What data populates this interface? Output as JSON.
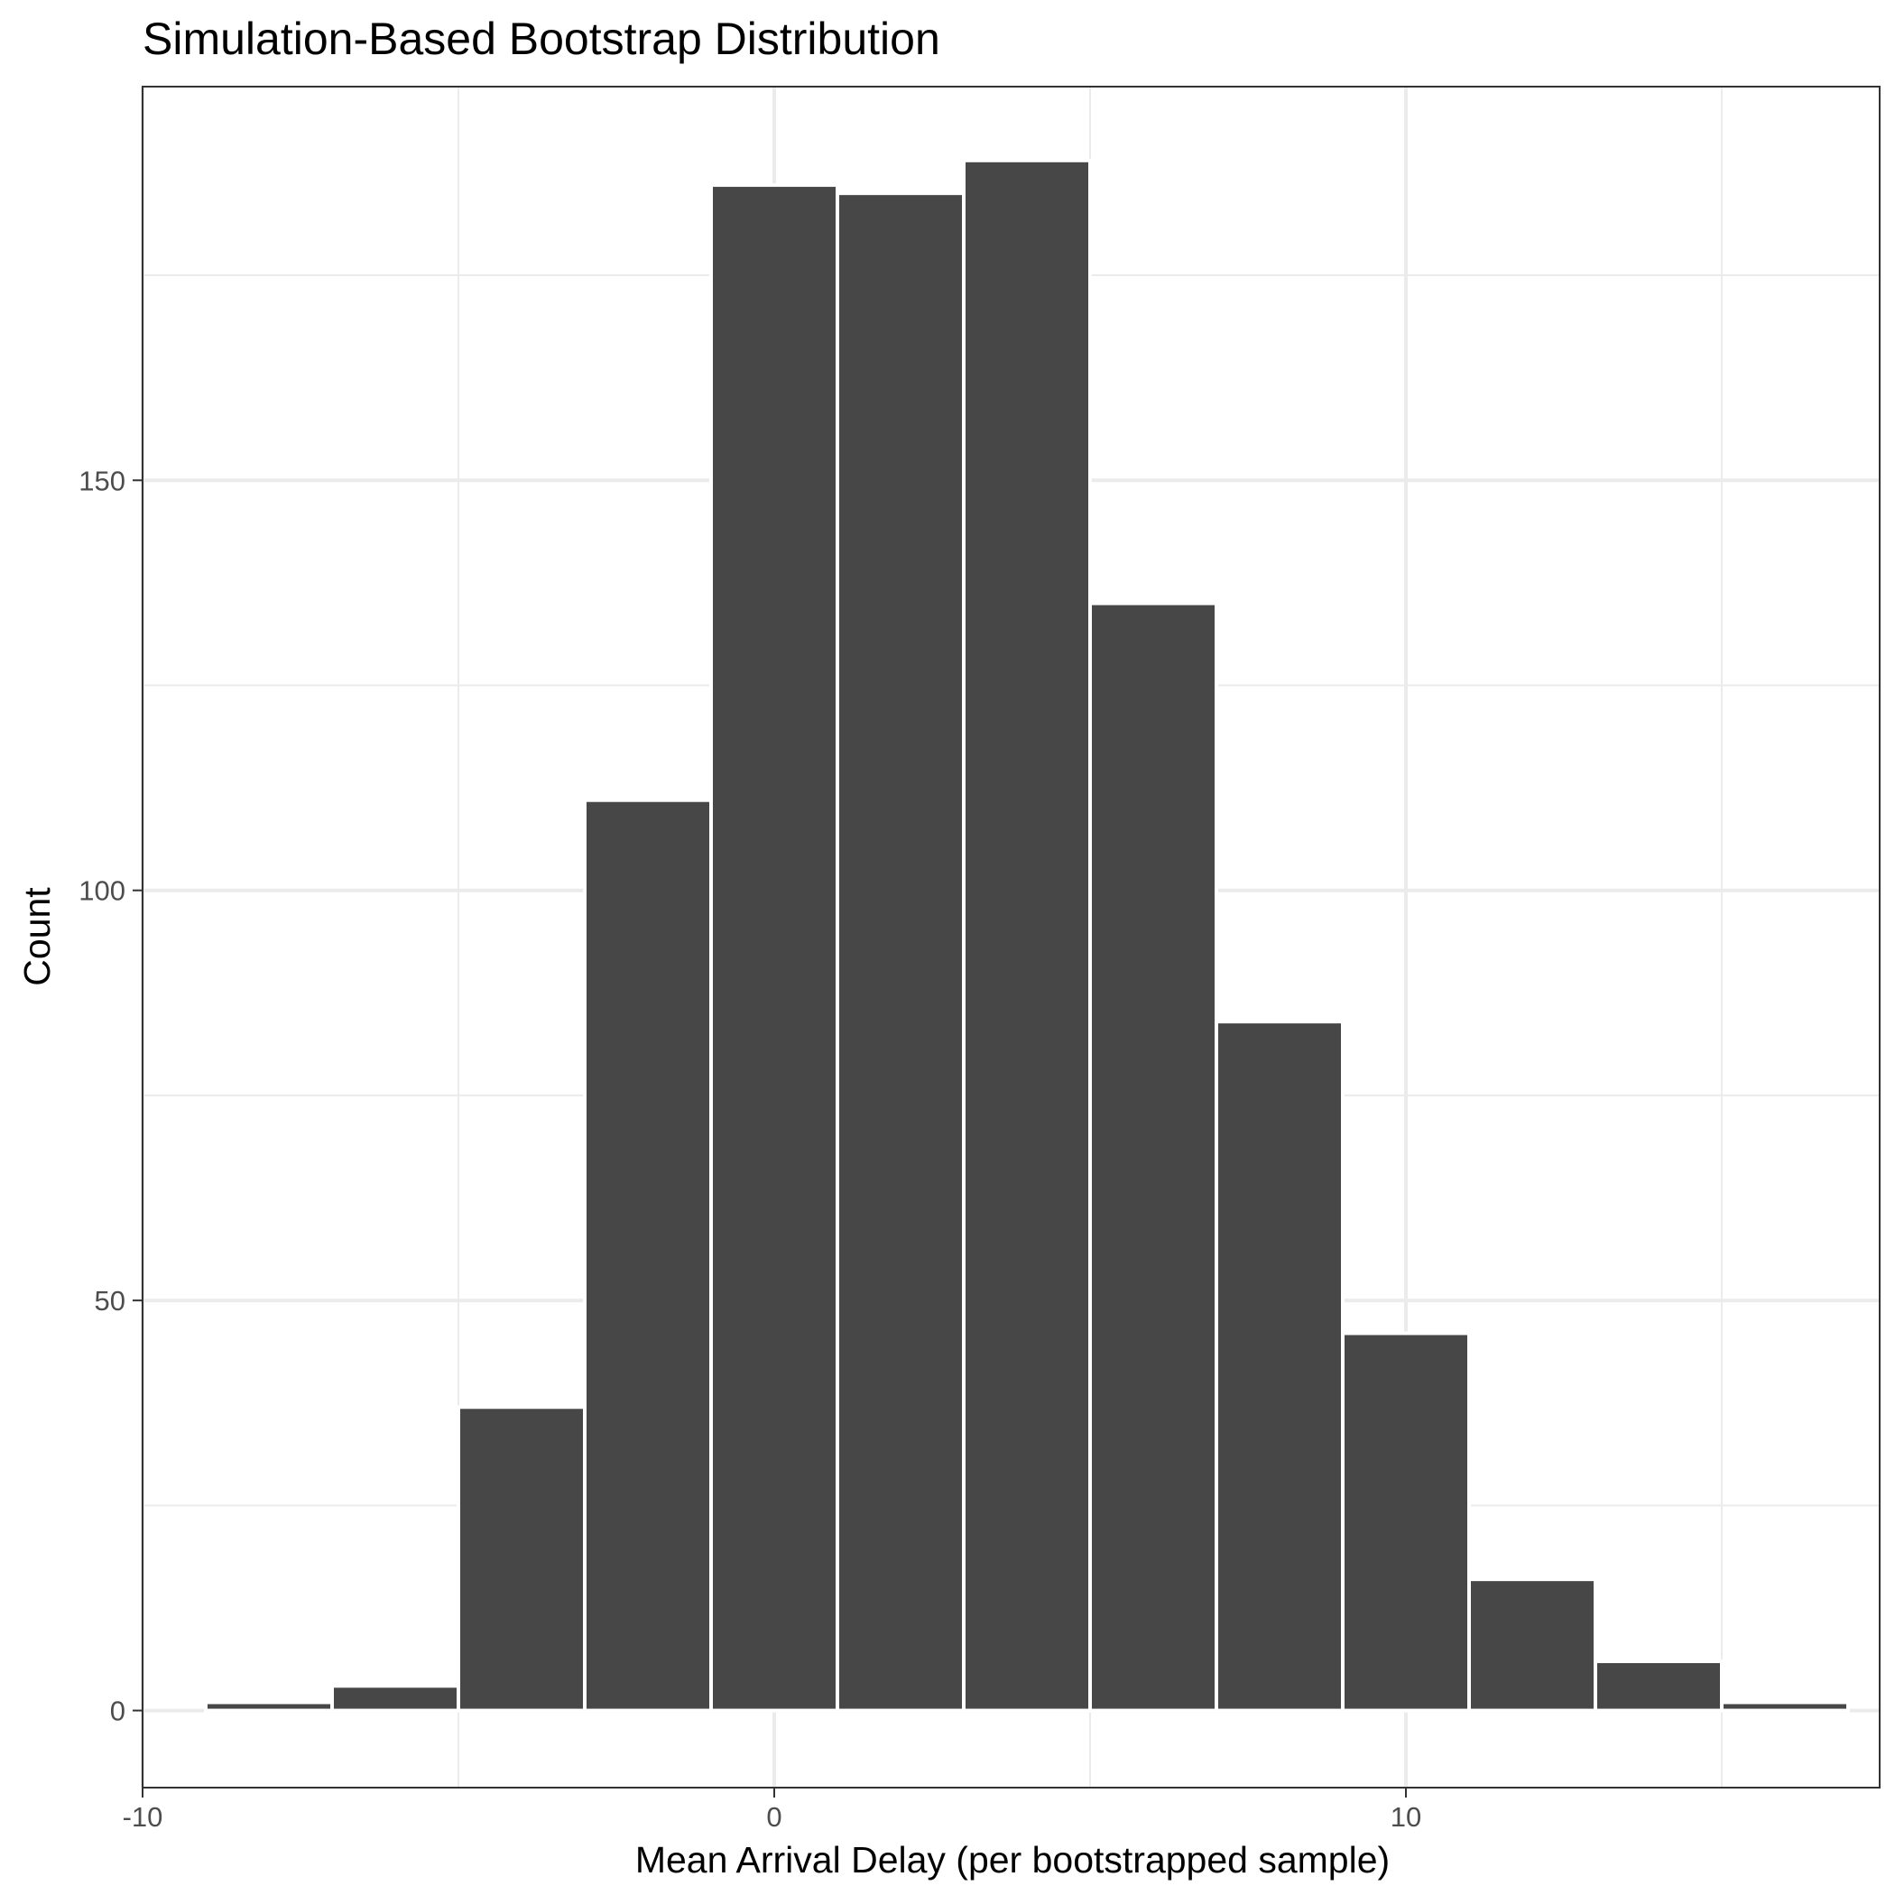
{
  "chart_data": {
    "type": "bar",
    "subtype": "histogram",
    "title": "Simulation-Based Bootstrap Distribution",
    "xlabel": "Mean Arrival Delay (per bootstrapped sample)",
    "ylabel": "Count",
    "xlim": [
      -10,
      17.5
    ],
    "ylim": [
      -9.4,
      198
    ],
    "x_ticks": [
      -10,
      0,
      10
    ],
    "x_tick_labels": [
      "-10",
      "0",
      "10"
    ],
    "x_minor_ticks": [
      -5,
      5,
      15
    ],
    "y_ticks": [
      0,
      50,
      100,
      150
    ],
    "y_tick_labels": [
      "0",
      "50",
      "100",
      "150"
    ],
    "y_minor_ticks": [
      25,
      75,
      125,
      175
    ],
    "bin_width": 2,
    "bins": [
      {
        "x_start": -9,
        "x_end": -7,
        "count": 1
      },
      {
        "x_start": -7,
        "x_end": -5,
        "count": 3
      },
      {
        "x_start": -5,
        "x_end": -3,
        "count": 37
      },
      {
        "x_start": -3,
        "x_end": -1,
        "count": 111
      },
      {
        "x_start": -1,
        "x_end": 1,
        "count": 186
      },
      {
        "x_start": 1,
        "x_end": 3,
        "count": 185
      },
      {
        "x_start": 3,
        "x_end": 5,
        "count": 189
      },
      {
        "x_start": 5,
        "x_end": 7,
        "count": 135
      },
      {
        "x_start": 7,
        "x_end": 9,
        "count": 84
      },
      {
        "x_start": 9,
        "x_end": 11,
        "count": 46
      },
      {
        "x_start": 11,
        "x_end": 13,
        "count": 16
      },
      {
        "x_start": 13,
        "x_end": 15,
        "count": 6
      },
      {
        "x_start": 15,
        "x_end": 17,
        "count": 1
      }
    ],
    "grid": true,
    "colors": {
      "bar_fill": "#474747",
      "bar_outline": "#ffffff",
      "grid_major": "#ebebeb",
      "panel_border": "#333333"
    }
  }
}
